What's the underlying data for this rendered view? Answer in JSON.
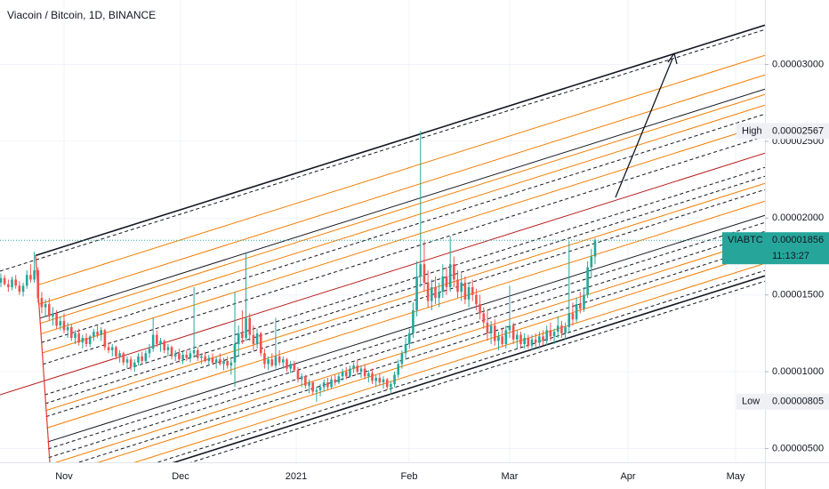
{
  "chart_data": {
    "type": "candlestick",
    "title": "Viacoin / Bitcoin, 1D, BINANCE",
    "xticks": [
      "Nov",
      "Dec",
      "2021",
      "Feb",
      "Mar",
      "Apr",
      "May"
    ],
    "ylim": [
      4.1e-06,
      3.42e-05
    ],
    "yticks": [
      {
        "value": 3e-05,
        "label": "0.00003000"
      },
      {
        "value": 2.5e-05,
        "label": "0.00002500"
      },
      {
        "value": 2e-05,
        "label": "0.00002000"
      },
      {
        "value": 1.5e-05,
        "label": "0.00001500"
      },
      {
        "value": 1e-05,
        "label": "0.00001000"
      },
      {
        "value": 5e-06,
        "label": "0.00000500"
      }
    ],
    "grid": true,
    "up_color": "#26a69a",
    "down_color": "#ef5350",
    "markers": [
      {
        "label": "High",
        "value": 2.567e-05,
        "value_label": "0.00002567"
      },
      {
        "label": "Low",
        "value": 8.05e-06,
        "value_label": "0.00000805"
      }
    ],
    "last": {
      "symbol": "VIABTC",
      "value": 1.856e-05,
      "value_label": "0.00001856",
      "countdown": "11:13:27"
    },
    "candles": [
      [
        1.58e-05,
        1.64e-05,
        1.55e-05,
        1.61e-05
      ],
      [
        1.61e-05,
        1.63e-05,
        1.56e-05,
        1.57e-05
      ],
      [
        1.57e-05,
        1.6e-05,
        1.52e-05,
        1.55e-05
      ],
      [
        1.55e-05,
        1.62e-05,
        1.53e-05,
        1.6e-05
      ],
      [
        1.6e-05,
        1.63e-05,
        1.54e-05,
        1.56e-05
      ],
      [
        1.56e-05,
        1.59e-05,
        1.5e-05,
        1.52e-05
      ],
      [
        1.52e-05,
        1.58e-05,
        1.49e-05,
        1.56e-05
      ],
      [
        1.56e-05,
        1.66e-05,
        1.54e-05,
        1.63e-05
      ],
      [
        1.63e-05,
        1.7e-05,
        1.58e-05,
        1.6e-05
      ],
      [
        1.6e-05,
        1.78e-05,
        1.58e-05,
        1.66e-05
      ],
      [
        1.66e-05,
        1.68e-05,
        1.45e-05,
        1.48e-05
      ],
      [
        1.48e-05,
        1.52e-05,
        1.38e-05,
        1.42e-05
      ],
      [
        1.42e-05,
        1.47e-05,
        1.36e-05,
        1.44e-05
      ],
      [
        1.44e-05,
        1.48e-05,
        1.33e-05,
        1.36e-05
      ],
      [
        1.36e-05,
        1.42e-05,
        1.3e-05,
        1.38e-05
      ],
      [
        1.38e-05,
        1.4e-05,
        1.28e-05,
        1.3e-05
      ],
      [
        1.3e-05,
        1.36e-05,
        1.27e-05,
        1.33e-05
      ],
      [
        1.33e-05,
        1.38e-05,
        1.25e-05,
        1.27e-05
      ],
      [
        1.27e-05,
        1.32e-05,
        1.22e-05,
        1.29e-05
      ],
      [
        1.29e-05,
        1.31e-05,
        1.2e-05,
        1.22e-05
      ],
      [
        1.22e-05,
        1.27e-05,
        1.18e-05,
        1.25e-05
      ],
      [
        1.25e-05,
        1.28e-05,
        1.17e-05,
        1.19e-05
      ],
      [
        1.19e-05,
        1.24e-05,
        1.15e-05,
        1.22e-05
      ],
      [
        1.22e-05,
        1.25e-05,
        1.16e-05,
        1.18e-05
      ],
      [
        1.18e-05,
        1.24e-05,
        1.16e-05,
        1.23e-05
      ],
      [
        1.23e-05,
        1.28e-05,
        1.2e-05,
        1.26e-05
      ],
      [
        1.26e-05,
        1.3e-05,
        1.22e-05,
        1.24e-05
      ],
      [
        1.24e-05,
        1.29e-05,
        1.2e-05,
        1.27e-05
      ],
      [
        1.27e-05,
        1.28e-05,
        1.14e-05,
        1.16e-05
      ],
      [
        1.16e-05,
        1.19e-05,
        1.12e-05,
        1.14e-05
      ],
      [
        1.14e-05,
        1.18e-05,
        1.1e-05,
        1.16e-05
      ],
      [
        1.16e-05,
        1.17e-05,
        1.08e-05,
        1.1e-05
      ],
      [
        1.1e-05,
        1.14e-05,
        1.06e-05,
        1.12e-05
      ],
      [
        1.12e-05,
        1.13e-05,
        1.04e-05,
        1.06e-05
      ],
      [
        1.06e-05,
        1.1e-05,
        1.02e-05,
        1.08e-05
      ],
      [
        1.08e-05,
        1.1e-05,
        1.01e-05,
        1.03e-05
      ],
      [
        1.03e-05,
        1.08e-05,
        1e-05,
        1.06e-05
      ],
      [
        1.06e-05,
        1.12e-05,
        1.04e-05,
        1.1e-05
      ],
      [
        1.1e-05,
        1.13e-05,
        1.05e-05,
        1.07e-05
      ],
      [
        1.07e-05,
        1.14e-05,
        1.06e-05,
        1.12e-05
      ],
      [
        1.12e-05,
        1.18e-05,
        1.09e-05,
        1.15e-05
      ],
      [
        1.15e-05,
        1.35e-05,
        1.13e-05,
        1.24e-05
      ],
      [
        1.24e-05,
        1.27e-05,
        1.16e-05,
        1.18e-05
      ],
      [
        1.18e-05,
        1.22e-05,
        1.13e-05,
        1.2e-05
      ],
      [
        1.2e-05,
        1.21e-05,
        1.12e-05,
        1.14e-05
      ],
      [
        1.14e-05,
        1.18e-05,
        1.1e-05,
        1.16e-05
      ],
      [
        1.16e-05,
        1.17e-05,
        1.08e-05,
        1.1e-05
      ],
      [
        1.1e-05,
        1.14e-05,
        1.07e-05,
        1.12e-05
      ],
      [
        1.12e-05,
        1.15e-05,
        1.06e-05,
        1.08e-05
      ],
      [
        1.08e-05,
        1.13e-05,
        1.05e-05,
        1.11e-05
      ],
      [
        1.11e-05,
        1.14e-05,
        1.07e-05,
        1.09e-05
      ],
      [
        1.09e-05,
        1.14e-05,
        1.06e-05,
        1.12e-05
      ],
      [
        1.12e-05,
        1.55e-05,
        1.09e-05,
        1.14e-05
      ],
      [
        1.14e-05,
        1.16e-05,
        1.07e-05,
        1.09e-05
      ],
      [
        1.09e-05,
        1.12e-05,
        1.05e-05,
        1.1e-05
      ],
      [
        1.1e-05,
        1.13e-05,
        1.06e-05,
        1.07e-05
      ],
      [
        1.07e-05,
        1.11e-05,
        1.04e-05,
        1.09e-05
      ],
      [
        1.09e-05,
        1.12e-05,
        1.05e-05,
        1.06e-05
      ],
      [
        1.06e-05,
        1.1e-05,
        1.02e-05,
        1.08e-05
      ],
      [
        1.08e-05,
        1.12e-05,
        1.04e-05,
        1.05e-05
      ],
      [
        1.05e-05,
        1.09e-05,
        1.01e-05,
        1.07e-05
      ],
      [
        1.07e-05,
        1.1e-05,
        1.02e-05,
        1.04e-05
      ],
      [
        1.04e-05,
        1.08e-05,
        9.8e-06,
        1.06e-05
      ],
      [
        1.06e-05,
        1.52e-05,
        9e-06,
        1.18e-05
      ],
      [
        1.18e-05,
        1.3e-05,
        1.1e-05,
        1.25e-05
      ],
      [
        1.25e-05,
        1.4e-05,
        1.18e-05,
        1.22e-05
      ],
      [
        1.22e-05,
        1.77e-05,
        1.2e-05,
        1.35e-05
      ],
      [
        1.35e-05,
        1.38e-05,
        1.2e-05,
        1.24e-05
      ],
      [
        1.24e-05,
        1.3e-05,
        1.14e-05,
        1.18e-05
      ],
      [
        1.18e-05,
        1.28e-05,
        1.15e-05,
        1.25e-05
      ],
      [
        1.25e-05,
        1.26e-05,
        1.1e-05,
        1.12e-05
      ],
      [
        1.12e-05,
        1.15e-05,
        1.02e-05,
        1.05e-05
      ],
      [
        1.05e-05,
        1.1e-05,
        1.01e-05,
        1.08e-05
      ],
      [
        1.08e-05,
        1.12e-05,
        1.03e-05,
        1.04e-05
      ],
      [
        1.04e-05,
        1.35e-05,
        1.02e-05,
        1.1e-05
      ],
      [
        1.1e-05,
        1.14e-05,
        1.04e-05,
        1.06e-05
      ],
      [
        1.06e-05,
        1.1e-05,
        1.02e-05,
        1.08e-05
      ],
      [
        1.08e-05,
        1.09e-05,
        1e-05,
        1.02e-05
      ],
      [
        1.02e-05,
        1.07e-05,
        9.9e-06,
        1.05e-05
      ],
      [
        1.05e-05,
        1.07e-05,
        1e-05,
        1.01e-05
      ],
      [
        1.01e-05,
        1.03e-05,
        9.3e-06,
        9.5e-06
      ],
      [
        9.5e-06,
        9.9e-06,
        9e-06,
        9.7e-06
      ],
      [
        9.7e-06,
        9.8e-06,
        8.9e-06,
        9.1e-06
      ],
      [
        9.1e-06,
        9.5e-06,
        8.6e-06,
        9.3e-06
      ],
      [
        9.3e-06,
        9.4e-06,
        8.5e-06,
        8.7e-06
      ],
      [
        8.7e-06,
        9e-06,
        8.05e-06,
        8.8e-06
      ],
      [
        8.8e-06,
        9.2e-06,
        8.4e-06,
        9e-06
      ],
      [
        9e-06,
        9.5e-06,
        8.7e-06,
        9.3e-06
      ],
      [
        9.3e-06,
        9.6e-06,
        8.8e-06,
        9e-06
      ],
      [
        9e-06,
        9.7e-06,
        8.9e-06,
        9.5e-06
      ],
      [
        9.5e-06,
        9.8e-06,
        9.1e-06,
        9.3e-06
      ],
      [
        9.3e-06,
        9.9e-06,
        9.2e-06,
        9.7e-06
      ],
      [
        9.7e-06,
        1.02e-05,
        9.4e-06,
        1e-05
      ],
      [
        1e-05,
        1.03e-05,
        9.5e-06,
        9.7e-06
      ],
      [
        9.7e-06,
        1.04e-05,
        9.6e-06,
        1.02e-05
      ],
      [
        1.02e-05,
        1.06e-05,
        9.9e-06,
        1.04e-05
      ],
      [
        1.04e-05,
        1.08e-05,
        9.8e-06,
        1e-05
      ],
      [
        1e-05,
        1.04e-05,
        9.6e-06,
        1.02e-05
      ],
      [
        1.02e-05,
        1.05e-05,
        9.5e-06,
        9.7e-06
      ],
      [
        9.7e-06,
        1.01e-05,
        9.3e-06,
        9.9e-06
      ],
      [
        9.9e-06,
        1.02e-05,
        9.2e-06,
        9.4e-06
      ],
      [
        9.4e-06,
        9.8e-06,
        9e-06,
        9.6e-06
      ],
      [
        9.6e-06,
        9.9e-06,
        9.1e-06,
        9.3e-06
      ],
      [
        9.3e-06,
        9.7e-06,
        8.9e-06,
        9.5e-06
      ],
      [
        9.5e-06,
        9.6e-06,
        8.8e-06,
        9e-06
      ],
      [
        9e-06,
        9.4e-06,
        8.5e-06,
        9.2e-06
      ],
      [
        9.2e-06,
        1e-05,
        9e-06,
        9.8e-06
      ],
      [
        9.8e-06,
        1.08e-05,
        9.6e-06,
        1.05e-05
      ],
      [
        1.05e-05,
        1.14e-05,
        1.02e-05,
        1.12e-05
      ],
      [
        1.12e-05,
        1.22e-05,
        1.08e-05,
        1.18e-05
      ],
      [
        1.18e-05,
        1.28e-05,
        1.15e-05,
        1.25e-05
      ],
      [
        1.25e-05,
        1.45e-05,
        1.22e-05,
        1.4e-05
      ],
      [
        1.4e-05,
        1.72e-05,
        1.36e-05,
        1.62e-05
      ],
      [
        1.62e-05,
        2.567e-05,
        1.55e-05,
        1.7e-05
      ],
      [
        1.7e-05,
        1.85e-05,
        1.52e-05,
        1.58e-05
      ],
      [
        1.58e-05,
        1.66e-05,
        1.42e-05,
        1.46e-05
      ],
      [
        1.46e-05,
        1.6e-05,
        1.4e-05,
        1.55e-05
      ],
      [
        1.55e-05,
        1.62e-05,
        1.44e-05,
        1.48e-05
      ],
      [
        1.48e-05,
        1.58e-05,
        1.42e-05,
        1.52e-05
      ],
      [
        1.52e-05,
        1.7e-05,
        1.48e-05,
        1.62e-05
      ],
      [
        1.62e-05,
        1.68e-05,
        1.5e-05,
        1.55e-05
      ],
      [
        1.55e-05,
        1.88e-05,
        1.52e-05,
        1.7e-05
      ],
      [
        1.7e-05,
        1.75e-05,
        1.55e-05,
        1.6e-05
      ],
      [
        1.6e-05,
        1.66e-05,
        1.48e-05,
        1.52e-05
      ],
      [
        1.52e-05,
        1.64e-05,
        1.46e-05,
        1.58e-05
      ],
      [
        1.58e-05,
        1.62e-05,
        1.44e-05,
        1.47e-05
      ],
      [
        1.47e-05,
        1.58e-05,
        1.42e-05,
        1.55e-05
      ],
      [
        1.55e-05,
        1.6e-05,
        1.46e-05,
        1.5e-05
      ],
      [
        1.5e-05,
        1.54e-05,
        1.4e-05,
        1.44e-05
      ],
      [
        1.44e-05,
        1.5e-05,
        1.34e-05,
        1.38e-05
      ],
      [
        1.38e-05,
        1.42e-05,
        1.28e-05,
        1.32e-05
      ],
      [
        1.32e-05,
        1.4e-05,
        1.2e-05,
        1.25e-05
      ],
      [
        1.25e-05,
        1.33e-05,
        1.18e-05,
        1.3e-05
      ],
      [
        1.3e-05,
        1.34e-05,
        1.17e-05,
        1.2e-05
      ],
      [
        1.2e-05,
        1.26e-05,
        1.14e-05,
        1.23e-05
      ],
      [
        1.23e-05,
        1.28e-05,
        1.16e-05,
        1.18e-05
      ],
      [
        1.18e-05,
        1.3e-05,
        1.15e-05,
        1.27e-05
      ],
      [
        1.27e-05,
        1.56e-05,
        1.22e-05,
        1.3e-05
      ],
      [
        1.3e-05,
        1.32e-05,
        1.18e-05,
        1.21e-05
      ],
      [
        1.21e-05,
        1.27e-05,
        1.15e-05,
        1.24e-05
      ],
      [
        1.24e-05,
        1.26e-05,
        1.16e-05,
        1.18e-05
      ],
      [
        1.18e-05,
        1.25e-05,
        1.15e-05,
        1.22e-05
      ],
      [
        1.22e-05,
        1.24e-05,
        1.15e-05,
        1.17e-05
      ],
      [
        1.17e-05,
        1.24e-05,
        1.14e-05,
        1.21e-05
      ],
      [
        1.21e-05,
        1.25e-05,
        1.16e-05,
        1.19e-05
      ],
      [
        1.19e-05,
        1.26e-05,
        1.15e-05,
        1.23e-05
      ],
      [
        1.23e-05,
        1.27e-05,
        1.17e-05,
        1.2e-05
      ],
      [
        1.2e-05,
        1.3e-05,
        1.17e-05,
        1.27e-05
      ],
      [
        1.27e-05,
        1.32e-05,
        1.2e-05,
        1.23e-05
      ],
      [
        1.23e-05,
        1.28e-05,
        1.18e-05,
        1.26e-05
      ],
      [
        1.26e-05,
        1.36e-05,
        1.22e-05,
        1.3e-05
      ],
      [
        1.3e-05,
        1.33e-05,
        1.22e-05,
        1.25e-05
      ],
      [
        1.25e-05,
        1.32e-05,
        1.21e-05,
        1.29e-05
      ],
      [
        1.29e-05,
        1.85e-05,
        1.26e-05,
        1.38e-05
      ],
      [
        1.38e-05,
        1.45e-05,
        1.3e-05,
        1.34e-05
      ],
      [
        1.34e-05,
        1.48e-05,
        1.32e-05,
        1.44e-05
      ],
      [
        1.44e-05,
        1.52e-05,
        1.38e-05,
        1.41e-05
      ],
      [
        1.41e-05,
        1.55e-05,
        1.39e-05,
        1.5e-05
      ],
      [
        1.5e-05,
        1.72e-05,
        1.48e-05,
        1.68e-05
      ],
      [
        1.68e-05,
        1.8e-05,
        1.62e-05,
        1.75e-05
      ],
      [
        1.75e-05,
        1.87e-05,
        1.7e-05,
        1.856e-05
      ]
    ]
  }
}
